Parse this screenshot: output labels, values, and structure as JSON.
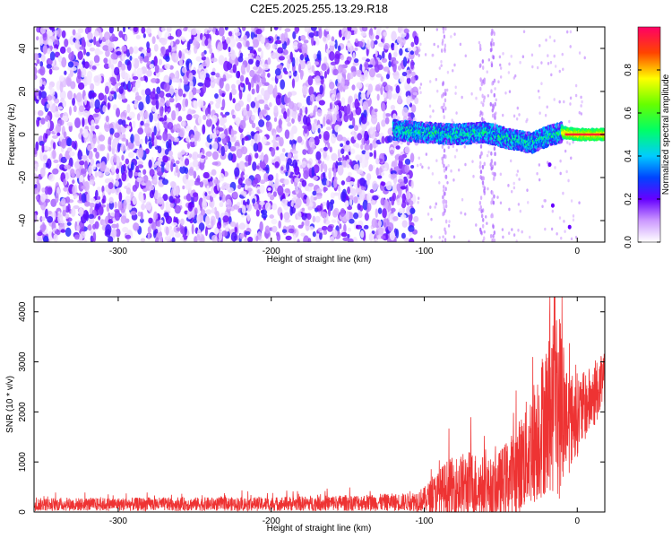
{
  "chart_data": [
    {
      "type": "heatmap",
      "title": "C2E5.2025.255.13.29.R18",
      "xlabel": "Height of straight line (km)",
      "ylabel": "Frequency (Hz)",
      "xlim": [
        -355,
        18
      ],
      "ylim": [
        -50,
        50
      ],
      "xticks": [
        -300,
        -200,
        -100,
        0
      ],
      "yticks": [
        -40,
        -20,
        0,
        20,
        40
      ],
      "colorbar": {
        "label": "Normalized spectral amplitude",
        "range": [
          0,
          1
        ],
        "ticks": [
          0.0,
          0.2,
          0.4,
          0.6,
          0.8
        ],
        "colormap": "rainbow (white-violet-blue-cyan-green-yellow-red)"
      },
      "features": {
        "noise_region_x": [
          -355,
          -105
        ],
        "signal_band_x": [
          -120,
          18
        ],
        "signal_band_frequency_hz": [
          {
            "x": -120,
            "f": 2
          },
          {
            "x": -100,
            "f": 1
          },
          {
            "x": -80,
            "f": 0
          },
          {
            "x": -60,
            "f": 1
          },
          {
            "x": -45,
            "f": -2
          },
          {
            "x": -30,
            "f": -4
          },
          {
            "x": -20,
            "f": -1
          },
          {
            "x": -10,
            "f": 1
          },
          {
            "x": 0,
            "f": 0
          },
          {
            "x": 18,
            "f": 0
          }
        ],
        "peak_amplitude_region_x": [
          -10,
          18
        ]
      }
    },
    {
      "type": "line",
      "xlabel": "Height of straight line (km)",
      "ylabel": "SNR (10 * v/v)",
      "xlim": [
        -355,
        18
      ],
      "ylim": [
        0,
        4300
      ],
      "xticks": [
        -300,
        -200,
        -100,
        0
      ],
      "yticks": [
        0,
        1000,
        2000,
        3000,
        4000
      ],
      "series": [
        {
          "name": "SNR",
          "color": "#ee3333",
          "envelope": [
            {
              "x": -355,
              "base": 150,
              "spread": 130
            },
            {
              "x": -200,
              "base": 160,
              "spread": 140
            },
            {
              "x": -110,
              "base": 200,
              "spread": 180
            },
            {
              "x": -100,
              "base": 250,
              "spread": 250
            },
            {
              "x": -85,
              "base": 450,
              "spread": 600
            },
            {
              "x": -70,
              "base": 550,
              "spread": 700
            },
            {
              "x": -55,
              "base": 450,
              "spread": 600
            },
            {
              "x": -40,
              "base": 800,
              "spread": 900
            },
            {
              "x": -30,
              "base": 1300,
              "spread": 1200
            },
            {
              "x": -22,
              "base": 1800,
              "spread": 1500
            },
            {
              "x": -15,
              "base": 2100,
              "spread": 1700
            },
            {
              "x": -12,
              "base": 2200,
              "spread": 2000
            },
            {
              "x": -5,
              "base": 1800,
              "spread": 1000
            },
            {
              "x": 5,
              "base": 2100,
              "spread": 700
            },
            {
              "x": 18,
              "base": 2600,
              "spread": 600
            }
          ],
          "max_value": 4300
        }
      ]
    }
  ]
}
